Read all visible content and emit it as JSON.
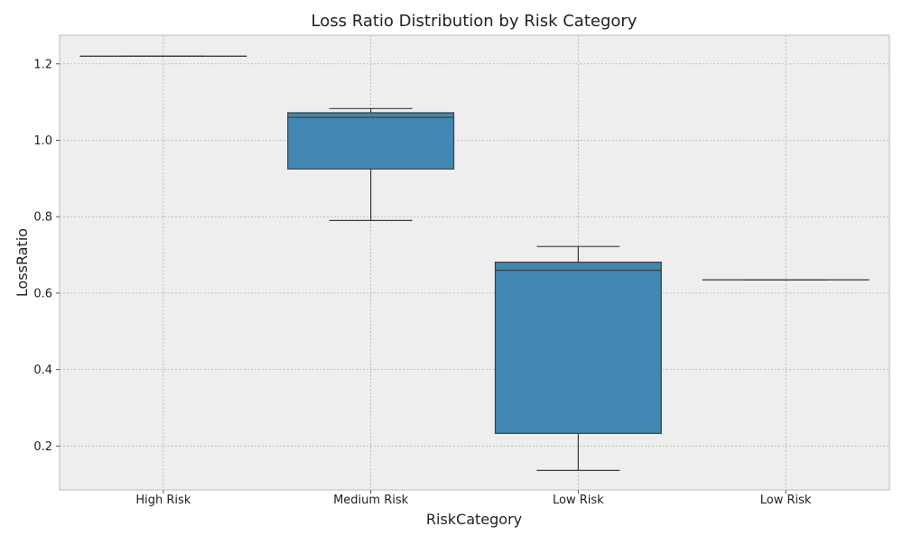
{
  "chart_data": {
    "type": "box",
    "title": "Loss Ratio Distribution by Risk Category",
    "xlabel": "RiskCategory",
    "ylabel": "LossRatio",
    "ylim": [
      0.085,
      1.275
    ],
    "yticks": [
      0.2,
      0.4,
      0.6,
      0.8,
      1.0,
      1.2
    ],
    "ytick_labels": [
      "0.2",
      "0.4",
      "0.6",
      "0.8",
      "1.0",
      "1.2"
    ],
    "grid": true,
    "categories": [
      "High Risk",
      "Medium Risk",
      "Low Risk",
      "Low Risk"
    ],
    "boxes": [
      {
        "whisker_low": 1.22,
        "q1": 1.22,
        "median": 1.22,
        "q3": 1.22,
        "whisker_high": 1.22
      },
      {
        "whisker_low": 0.79,
        "q1": 0.925,
        "median": 1.06,
        "q3": 1.072,
        "whisker_high": 1.083
      },
      {
        "whisker_low": 0.136,
        "q1": 0.233,
        "median": 0.66,
        "q3": 0.681,
        "whisker_high": 0.722
      },
      {
        "whisker_low": 0.635,
        "q1": 0.635,
        "median": 0.635,
        "q3": 0.635,
        "whisker_high": 0.635
      }
    ],
    "colors": {
      "box_fill": "#4287b2",
      "box_edge": "#3d3d3d",
      "plot_bg": "#eeeeee",
      "grid": "#b2b2b2",
      "frame": "#bcbcbc"
    }
  }
}
